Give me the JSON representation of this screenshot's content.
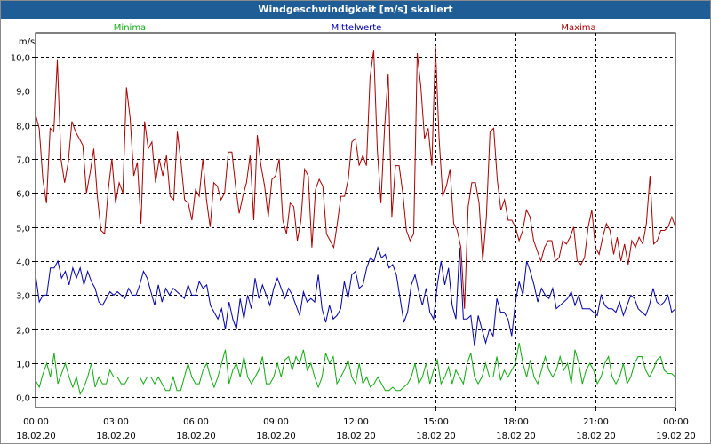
{
  "window": {
    "title": "Windgeschwindigkeit [m/s] skaliert"
  },
  "colors": {
    "min": "#11aa11",
    "mean": "#0000aa",
    "max": "#aa0000",
    "grid": "#000000",
    "titlebar": "#1f5d97"
  },
  "chart_data": {
    "type": "line",
    "title": "Windgeschwindigkeit [m/s] skaliert",
    "ylabel": "m/s",
    "xlabel": "",
    "ylim": [
      -0.3,
      10.7
    ],
    "xlim": [
      0,
      24
    ],
    "grid": true,
    "legend": "top",
    "y_ticks": [
      "0,0",
      "1,0",
      "2,0",
      "3,0",
      "4,0",
      "5,0",
      "6,0",
      "7,0",
      "8,0",
      "9,0",
      "10,0"
    ],
    "x_ticks": [
      {
        "time": "00:00",
        "date": "18.02.20"
      },
      {
        "time": "03:00",
        "date": "18.02.20"
      },
      {
        "time": "06:00",
        "date": "18.02.20"
      },
      {
        "time": "09:00",
        "date": "18.02.20"
      },
      {
        "time": "12:00",
        "date": "18.02.20"
      },
      {
        "time": "15:00",
        "date": "18.02.20"
      },
      {
        "time": "18:00",
        "date": "18.02.20"
      },
      {
        "time": "21:00",
        "date": "18.02.20"
      },
      {
        "time": "00:00",
        "date": "19.02.20"
      }
    ],
    "series": [
      {
        "key": "min",
        "name": "Minima",
        "values": [
          0.5,
          0.3,
          0.7,
          1.0,
          0.6,
          1.3,
          0.4,
          0.7,
          1.0,
          0.6,
          0.3,
          0.6,
          0.1,
          0.3,
          0.6,
          1.0,
          0.3,
          0.6,
          0.4,
          0.4,
          0.8,
          0.6,
          0.6,
          0.4,
          0.4,
          0.6,
          0.6,
          0.6,
          0.6,
          0.4,
          0.6,
          0.6,
          0.4,
          0.6,
          0.4,
          0.2,
          0.2,
          0.6,
          0.2,
          0.2,
          0.6,
          1.0,
          0.6,
          0.4,
          0.4,
          0.8,
          1.0,
          0.6,
          0.3,
          0.6,
          1.0,
          1.4,
          0.4,
          0.8,
          1.0,
          0.6,
          1.2,
          0.6,
          0.4,
          0.6,
          0.8,
          1.2,
          0.4,
          0.4,
          0.6,
          1.0,
          0.6,
          1.1,
          1.2,
          0.8,
          1.2,
          1.0,
          1.4,
          0.8,
          1.0,
          0.6,
          0.3,
          0.6,
          1.3,
          1.0,
          1.2,
          0.4,
          0.6,
          0.8,
          1.1,
          0.6,
          0.4,
          1.0,
          0.4,
          0.6,
          0.3,
          0.4,
          0.6,
          0.4,
          0.2,
          0.2,
          0.3,
          0.2,
          0.2,
          0.3,
          0.4,
          0.6,
          1.0,
          0.4,
          0.6,
          1.0,
          0.4,
          0.8,
          1.1,
          0.4,
          0.6,
          0.9,
          0.4,
          0.8,
          0.6,
          0.4,
          1.0,
          1.3,
          0.6,
          0.4,
          0.6,
          1.0,
          0.6,
          0.6,
          1.2,
          0.5,
          0.8,
          0.6,
          0.8,
          1.0,
          1.6,
          1.0,
          0.6,
          1.1,
          0.6,
          0.4,
          0.8,
          1.2,
          0.8,
          0.6,
          0.8,
          1.2,
          0.8,
          1.0,
          0.4,
          1.4,
          1.0,
          0.4,
          0.8,
          1.0,
          0.8,
          0.4,
          0.6,
          1.0,
          1.2,
          0.6,
          0.4,
          0.6,
          1.0,
          0.4,
          0.6,
          1.0,
          1.2,
          1.2,
          0.8,
          0.6,
          0.8,
          1.1,
          1.2,
          0.8,
          0.7,
          0.7,
          0.6
        ]
      },
      {
        "key": "mean",
        "name": "Mittelwerte",
        "values": [
          3.6,
          2.8,
          3.0,
          3.0,
          3.8,
          3.8,
          4.0,
          3.5,
          3.7,
          3.3,
          3.8,
          3.5,
          3.8,
          3.3,
          3.7,
          3.4,
          3.2,
          2.8,
          2.7,
          2.9,
          3.1,
          3.0,
          3.1,
          3.0,
          2.9,
          3.2,
          3.0,
          3.0,
          3.3,
          3.7,
          3.5,
          3.1,
          2.7,
          3.3,
          2.8,
          3.2,
          3.0,
          3.2,
          3.1,
          3.0,
          2.9,
          3.3,
          3.0,
          3.0,
          3.4,
          3.2,
          3.3,
          2.7,
          2.5,
          2.3,
          2.6,
          2.0,
          2.8,
          2.3,
          2.0,
          2.9,
          2.3,
          3.0,
          2.6,
          3.5,
          2.9,
          3.3,
          3.0,
          2.7,
          3.2,
          3.5,
          3.2,
          2.9,
          3.2,
          3.0,
          2.7,
          2.4,
          3.1,
          2.8,
          2.9,
          2.8,
          3.6,
          2.6,
          2.2,
          2.7,
          2.3,
          2.4,
          2.6,
          3.4,
          2.9,
          3.6,
          3.7,
          3.2,
          3.3,
          3.8,
          4.1,
          4.0,
          4.4,
          4.1,
          4.2,
          3.8,
          3.9,
          3.6,
          2.9,
          2.2,
          2.5,
          3.3,
          3.6,
          3.1,
          2.7,
          3.2,
          2.5,
          2.3,
          3.3,
          4.0,
          3.3,
          3.8,
          2.7,
          2.3,
          4.4,
          2.3,
          2.3,
          2.4,
          1.5,
          2.4,
          2.0,
          1.6,
          2.0,
          1.8,
          2.9,
          2.5,
          2.5,
          2.3,
          1.8,
          2.8,
          3.4,
          3.0,
          4.0,
          3.7,
          3.3,
          2.8,
          3.2,
          3.0,
          2.9,
          3.2,
          2.6,
          2.7,
          2.8,
          2.9,
          3.1,
          2.7,
          3.0,
          2.6,
          2.6,
          2.6,
          2.5,
          2.4,
          3.0,
          2.7,
          2.6,
          2.6,
          2.5,
          2.8,
          2.4,
          2.7,
          3.0,
          2.9,
          2.6,
          2.5,
          2.4,
          2.7,
          3.2,
          2.8,
          2.7,
          2.8,
          3.0,
          2.5,
          2.6
        ]
      },
      {
        "key": "max",
        "name": "Maxima",
        "values": [
          8.3,
          7.9,
          6.4,
          5.7,
          7.9,
          7.8,
          9.9,
          7.0,
          6.3,
          6.9,
          8.1,
          7.8,
          7.6,
          7.4,
          6.0,
          6.6,
          7.3,
          5.9,
          4.9,
          4.8,
          6.1,
          7.0,
          5.7,
          6.3,
          6.0,
          9.1,
          8.2,
          6.5,
          6.9,
          5.1,
          8.1,
          7.3,
          7.5,
          6.3,
          7.0,
          6.5,
          7.1,
          5.9,
          5.8,
          7.8,
          6.9,
          5.8,
          5.7,
          5.2,
          6.1,
          5.9,
          7.0,
          5.8,
          5.0,
          6.3,
          6.2,
          5.8,
          6.0,
          7.2,
          7.2,
          6.2,
          5.4,
          5.9,
          6.3,
          7.1,
          5.2,
          7.7,
          6.8,
          6.2,
          5.3,
          6.4,
          6.5,
          7.0,
          5.2,
          4.8,
          5.7,
          5.6,
          4.6,
          5.2,
          6.7,
          6.5,
          4.4,
          6.1,
          6.4,
          6.2,
          4.8,
          4.6,
          4.4,
          5.1,
          5.9,
          5.9,
          6.4,
          7.5,
          7.6,
          6.8,
          7.1,
          6.8,
          9.4,
          10.2,
          7.3,
          5.7,
          7.9,
          9.5,
          5.3,
          6.8,
          6.8,
          6.0,
          4.9,
          4.6,
          4.8,
          10.1,
          9.1,
          7.6,
          7.9,
          6.8,
          10.3,
          7.6,
          5.9,
          6.2,
          6.7,
          5.1,
          4.9,
          4.4,
          2.6,
          5.6,
          6.3,
          6.3,
          5.7,
          4.0,
          5.3,
          7.8,
          7.9,
          6.4,
          5.5,
          5.8,
          5.2,
          5.2,
          5.0,
          4.6,
          4.9,
          5.5,
          5.3,
          4.6,
          4.3,
          4.0,
          4.4,
          4.6,
          4.6,
          4.0,
          4.1,
          4.6,
          4.5,
          4.7,
          5.0,
          4.0,
          3.9,
          4.1,
          5.0,
          5.5,
          4.4,
          4.2,
          4.7,
          5.1,
          4.9,
          4.2,
          4.7,
          4.0,
          4.5,
          3.9,
          4.6,
          4.4,
          4.7,
          4.5,
          5.1,
          6.5,
          4.5,
          4.6,
          4.9,
          4.9,
          5.0,
          5.3,
          5.0
        ]
      }
    ]
  }
}
